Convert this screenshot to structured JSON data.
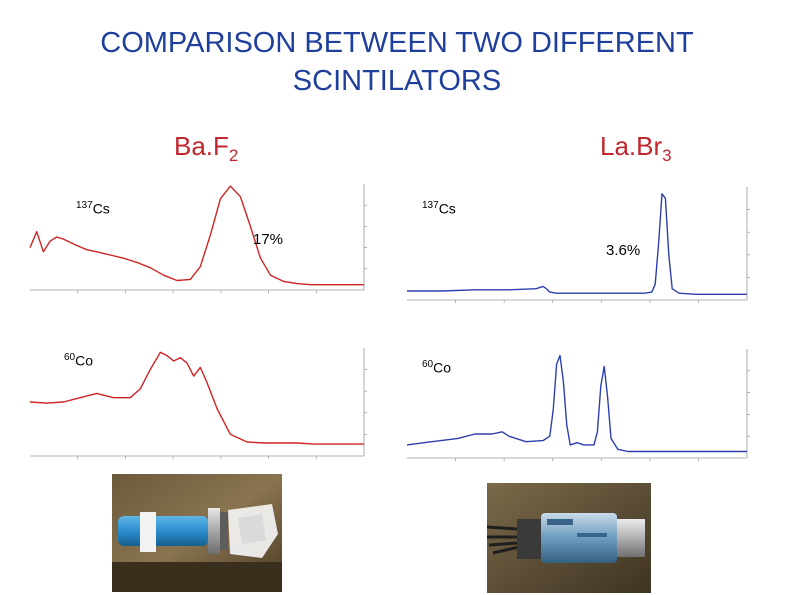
{
  "slide": {
    "title_line1": "COMPARISON BETWEEN TWO DIFFERENT",
    "title_line2": "SCINTILATORS"
  },
  "columns": {
    "baf2": {
      "main": "Ba.F",
      "sub": "2"
    },
    "labr3": {
      "main": "La.Br",
      "sub": "3"
    }
  },
  "chart_data": [
    {
      "type": "line",
      "detector": "BaF2",
      "isotope": {
        "mass": "137",
        "symbol": "Cs"
      },
      "resolution_label": "17%",
      "color": "#d02424",
      "x": [
        0,
        2,
        4,
        6,
        8,
        10,
        12,
        14,
        17,
        20,
        24,
        28,
        32,
        36,
        40,
        44,
        48,
        51,
        54,
        57,
        60,
        63,
        66,
        69,
        72,
        76,
        80,
        84,
        88,
        92,
        96,
        100
      ],
      "y": [
        40,
        55,
        36,
        46,
        50,
        48,
        45,
        42,
        38,
        36,
        33,
        30,
        26,
        21,
        14,
        9,
        10,
        22,
        52,
        86,
        98,
        88,
        60,
        30,
        14,
        8,
        6,
        5,
        5,
        5,
        5,
        5
      ],
      "xlim": [
        0,
        100
      ],
      "ylim": [
        0,
        100
      ]
    },
    {
      "type": "line",
      "detector": "LaBr3",
      "isotope": {
        "mass": "137",
        "symbol": "Cs"
      },
      "resolution_label": "3.6%",
      "color": "#2d3fae",
      "x": [
        0,
        10,
        20,
        30,
        38,
        40,
        41,
        42,
        44,
        50,
        60,
        70,
        72,
        73,
        74,
        75,
        76,
        77,
        78,
        80,
        85,
        90,
        95,
        100
      ],
      "y": [
        8,
        8,
        9,
        9,
        10,
        12,
        10,
        7,
        6,
        6,
        6,
        6,
        7,
        14,
        50,
        94,
        90,
        40,
        10,
        6,
        5,
        5,
        5,
        5
      ],
      "xlim": [
        0,
        100
      ],
      "ylim": [
        0,
        100
      ]
    },
    {
      "type": "line",
      "detector": "BaF2",
      "isotope": {
        "mass": "60",
        "symbol": "Co"
      },
      "color": "#d02424",
      "x": [
        0,
        5,
        10,
        15,
        20,
        25,
        30,
        33,
        36,
        39,
        41,
        43,
        45,
        47,
        49,
        51,
        53,
        56,
        60,
        65,
        70,
        75,
        80,
        85,
        90,
        95,
        100
      ],
      "y": [
        50,
        49,
        50,
        54,
        58,
        54,
        54,
        62,
        80,
        96,
        93,
        88,
        91,
        86,
        74,
        82,
        68,
        44,
        20,
        13,
        12,
        12,
        12,
        11,
        11,
        11,
        11
      ],
      "xlim": [
        0,
        100
      ],
      "ylim": [
        0,
        100
      ]
    },
    {
      "type": "line",
      "detector": "LaBr3",
      "isotope": {
        "mass": "60",
        "symbol": "Co"
      },
      "color": "#2d3fae",
      "x": [
        0,
        5,
        10,
        15,
        20,
        25,
        28,
        30,
        32,
        35,
        40,
        42,
        43,
        44,
        45,
        46,
        47,
        48,
        50,
        52,
        55,
        56,
        57,
        58,
        59,
        60,
        62,
        65,
        70,
        75,
        80,
        85,
        90,
        95,
        100
      ],
      "y": [
        12,
        14,
        16,
        18,
        22,
        22,
        24,
        20,
        18,
        15,
        16,
        20,
        44,
        86,
        94,
        70,
        30,
        12,
        14,
        12,
        12,
        24,
        66,
        84,
        56,
        18,
        8,
        6,
        6,
        6,
        6,
        6,
        6,
        6,
        6
      ],
      "xlim": [
        0,
        100
      ],
      "ylim": [
        0,
        100
      ]
    }
  ]
}
